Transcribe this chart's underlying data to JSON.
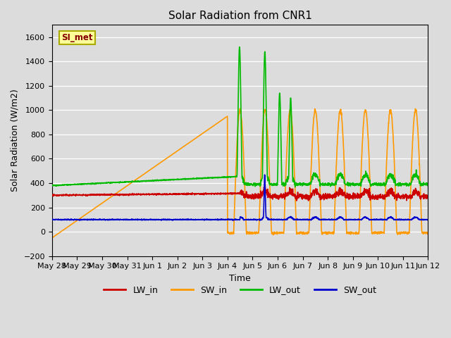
{
  "title": "Solar Radiation from CNR1",
  "xlabel": "Time",
  "ylabel": "Solar Radiation (W/m2)",
  "ylim": [
    -200,
    1700
  ],
  "yticks": [
    -200,
    0,
    200,
    400,
    600,
    800,
    1000,
    1200,
    1400,
    1600
  ],
  "background_color": "#dcdcdc",
  "plot_bg_color": "#dcdcdc",
  "legend_label": "SI_met",
  "legend_bg": "#ffff99",
  "legend_border": "#aaaa00",
  "series_colors": {
    "LW_in": "#cc0000",
    "SW_in": "#ff9900",
    "LW_out": "#00bb00",
    "SW_out": "#0000cc"
  },
  "xtick_labels": [
    "May 28",
    "May 29",
    "May 30",
    "May 31",
    "Jun 1",
    "Jun 2",
    "Jun 3",
    "Jun 4",
    "Jun 5",
    "Jun 6",
    "Jun 7",
    "Jun 8",
    "Jun 9",
    "Jun 10",
    "Jun 11",
    "Jun 12"
  ],
  "line_width": 1.2
}
